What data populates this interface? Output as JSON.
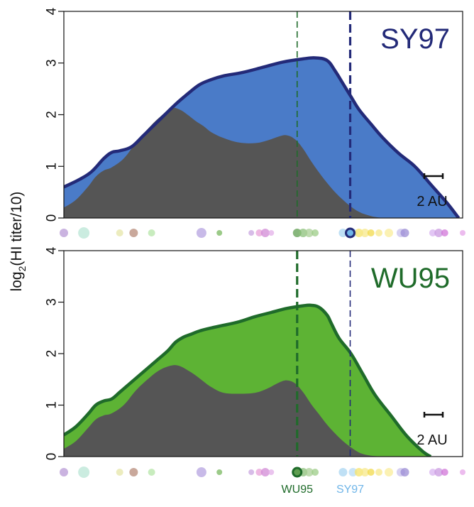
{
  "chart_data": {
    "type": "area",
    "ylabel": "log2(HI titer/10)",
    "ylabel_parts": {
      "prefix": "log",
      "subscript": "2",
      "suffix": "(HI titer/10)"
    },
    "xlim": [
      0,
      100
    ],
    "ylim": [
      0,
      4
    ],
    "yticks": [
      "0",
      "1",
      "2",
      "3",
      "4"
    ],
    "grid": false,
    "colors": {
      "sy97_dark": "#232a78",
      "sy97_fill": "#4a7bc8",
      "wu95_dark": "#1f6b2a",
      "wu95_fill": "#5db334",
      "gray_fill": "#555555",
      "sy97_light": "#6fb5e8"
    },
    "panels": [
      {
        "title": "SY97",
        "title_color": "#232a78",
        "fill_color": "#4a7bc8",
        "line_color": "#232a78",
        "scale_label": "2 AU",
        "total": {
          "x": [
            0,
            4,
            7,
            10,
            12,
            14,
            17,
            20,
            24,
            28,
            31,
            34,
            37,
            40,
            45,
            50,
            55,
            60,
            63,
            66,
            68,
            70,
            72,
            74,
            77,
            80,
            84,
            88,
            92,
            96,
            99
          ],
          "y": [
            0.6,
            0.75,
            0.9,
            1.15,
            1.27,
            1.3,
            1.38,
            1.6,
            1.9,
            2.2,
            2.4,
            2.58,
            2.68,
            2.75,
            2.82,
            2.92,
            3.02,
            3.08,
            3.1,
            3.05,
            2.85,
            2.6,
            2.35,
            2.1,
            1.82,
            1.55,
            1.25,
            1.0,
            0.65,
            0.3,
            0.0
          ]
        },
        "gray": {
          "x": [
            0,
            3,
            6,
            8,
            10,
            12,
            15,
            18,
            21,
            24,
            27,
            29,
            31,
            33,
            35,
            37,
            40,
            44,
            48,
            51,
            54,
            56,
            58,
            60,
            62,
            64,
            66,
            68,
            70,
            72,
            74,
            76,
            78,
            80
          ],
          "y": [
            0.2,
            0.35,
            0.6,
            0.8,
            0.92,
            0.98,
            1.15,
            1.45,
            1.72,
            1.95,
            2.12,
            2.1,
            2.0,
            1.88,
            1.78,
            1.66,
            1.55,
            1.46,
            1.45,
            1.5,
            1.58,
            1.6,
            1.52,
            1.34,
            1.1,
            0.88,
            0.68,
            0.5,
            0.35,
            0.22,
            0.12,
            0.06,
            0.02,
            0.0
          ]
        },
        "vlines": [
          {
            "x": 58.5,
            "color": "#1f6b2a",
            "style": "thin"
          },
          {
            "x": 71.8,
            "color": "#232a78",
            "style": "thick"
          }
        ]
      },
      {
        "title": "WU95",
        "title_color": "#1f6b2a",
        "fill_color": "#5db334",
        "line_color": "#1f6b2a",
        "scale_label": "2 AU",
        "total": {
          "x": [
            0,
            3,
            6,
            8,
            10,
            12,
            14,
            17,
            20,
            23,
            26,
            28,
            30,
            32,
            34,
            37,
            40,
            44,
            48,
            52,
            56,
            60,
            62,
            64,
            66,
            67,
            69,
            72,
            75,
            78,
            82,
            86,
            90,
            92
          ],
          "y": [
            0.42,
            0.58,
            0.82,
            1.0,
            1.08,
            1.12,
            1.25,
            1.45,
            1.65,
            1.85,
            2.05,
            2.22,
            2.32,
            2.38,
            2.44,
            2.5,
            2.55,
            2.62,
            2.72,
            2.8,
            2.88,
            2.93,
            2.94,
            2.9,
            2.75,
            2.6,
            2.3,
            2.0,
            1.6,
            1.2,
            0.8,
            0.4,
            0.1,
            0.0
          ]
        },
        "gray": {
          "x": [
            0,
            3,
            6,
            8,
            10,
            12,
            15,
            18,
            21,
            24,
            27,
            29,
            31,
            33,
            35,
            37,
            40,
            44,
            48,
            51,
            54,
            56,
            58,
            60,
            62,
            64,
            66,
            68,
            70,
            72,
            74,
            76,
            78,
            80
          ],
          "y": [
            0.15,
            0.3,
            0.55,
            0.72,
            0.8,
            0.84,
            1.0,
            1.28,
            1.5,
            1.68,
            1.77,
            1.76,
            1.68,
            1.58,
            1.46,
            1.35,
            1.24,
            1.22,
            1.24,
            1.32,
            1.44,
            1.48,
            1.42,
            1.25,
            1.02,
            0.82,
            0.62,
            0.45,
            0.3,
            0.18,
            0.08,
            0.03,
            0.01,
            0.0
          ]
        },
        "vlines": [
          {
            "x": 58.5,
            "color": "#1f6b2a",
            "style": "thick"
          },
          {
            "x": 71.8,
            "color": "#232a78",
            "style": "thin"
          }
        ]
      }
    ],
    "strain_markers": [
      {
        "x": 0.0,
        "r": 6,
        "color": "#b89ad6"
      },
      {
        "x": 5.0,
        "r": 8,
        "color": "#b9e6d6"
      },
      {
        "x": 14.0,
        "r": 5,
        "color": "#e6e6a8"
      },
      {
        "x": 17.5,
        "r": 6,
        "color": "#b78b7a"
      },
      {
        "x": 22.0,
        "r": 5,
        "color": "#b5e6a8"
      },
      {
        "x": 34.5,
        "r": 7,
        "color": "#b5a3e0"
      },
      {
        "x": 39.0,
        "r": 4,
        "color": "#79b860"
      },
      {
        "x": 47.0,
        "r": 4,
        "color": "#c9a6e0"
      },
      {
        "x": 49.0,
        "r": 5,
        "color": "#e8a0d8"
      },
      {
        "x": 50.5,
        "r": 6,
        "color": "#d28ad6"
      },
      {
        "x": 52.0,
        "r": 4,
        "color": "#e3b0e8"
      },
      {
        "x": 58.5,
        "r": 6,
        "color": "#5f9e50"
      },
      {
        "x": 60.0,
        "r": 6,
        "color": "#8bc07a"
      },
      {
        "x": 61.5,
        "r": 6,
        "color": "#a9cf95"
      },
      {
        "x": 63.0,
        "r": 5,
        "color": "#9ccc87"
      },
      {
        "x": 70.0,
        "r": 6,
        "color": "#a9d5f2"
      },
      {
        "x": 72.5,
        "r": 6,
        "color": "#b8dcf5"
      },
      {
        "x": 74.0,
        "r": 6,
        "color": "#f5e36a"
      },
      {
        "x": 75.5,
        "r": 6,
        "color": "#f7e88a"
      },
      {
        "x": 77.0,
        "r": 5,
        "color": "#f2da4a"
      },
      {
        "x": 79.0,
        "r": 5,
        "color": "#f7e88a"
      },
      {
        "x": 81.5,
        "r": 6,
        "color": "#f9ec9a"
      },
      {
        "x": 84.5,
        "r": 6,
        "color": "#c8c0ec"
      },
      {
        "x": 85.5,
        "r": 6,
        "color": "#9b8cd4"
      },
      {
        "x": 92.5,
        "r": 5,
        "color": "#d8b3f0"
      },
      {
        "x": 94.0,
        "r": 6,
        "color": "#c99ae0"
      },
      {
        "x": 95.5,
        "r": 5,
        "color": "#d276d8"
      },
      {
        "x": 100.0,
        "r": 4,
        "color": "#e6a6e8"
      }
    ],
    "highlight_markers": [
      {
        "panel": 0,
        "x": 71.8,
        "r": 6,
        "fill": "#6fb5e8",
        "stroke": "#232a78"
      },
      {
        "panel": 1,
        "x": 58.5,
        "r": 6,
        "fill": "#5f9e50",
        "stroke": "#1f6b2a"
      }
    ],
    "strain_labels": [
      {
        "text": "WU95",
        "x": 58.5,
        "color": "#1f6b2a"
      },
      {
        "text": "SY97",
        "x": 71.8,
        "color": "#6fb5e8"
      }
    ]
  }
}
